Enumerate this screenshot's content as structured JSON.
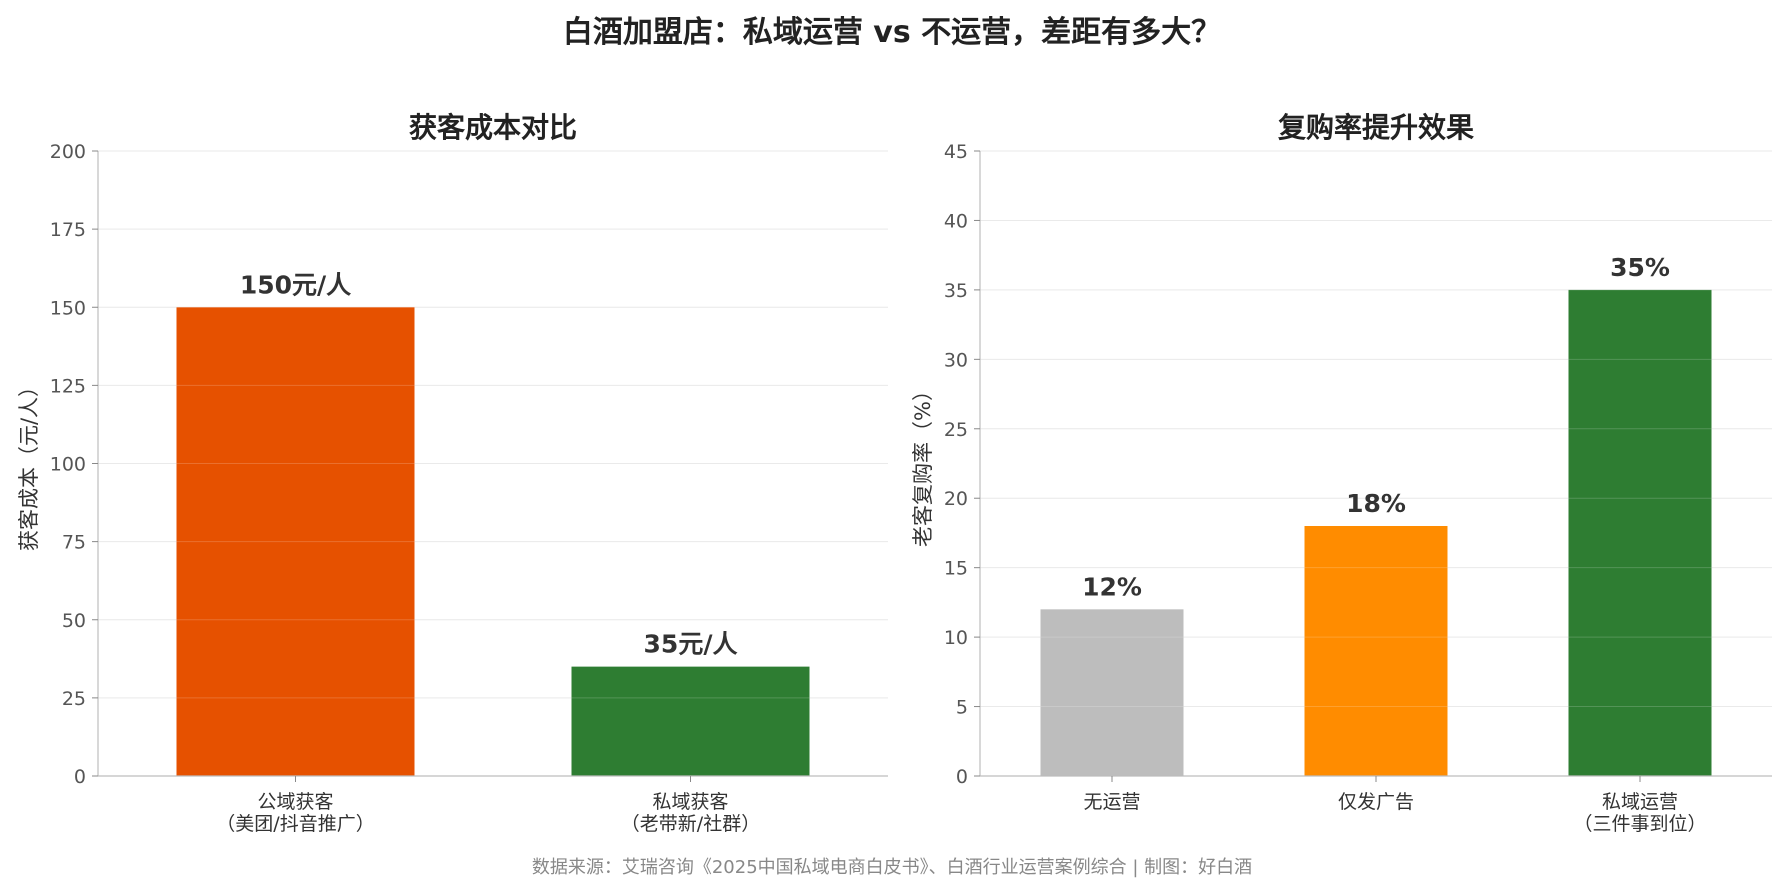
{
  "suptitle": "白酒加盟店：私域运营 vs 不运营，差距有多大？",
  "source": "数据来源：艾瑞咨询《2025中国私域电商白皮书》、白酒行业运营案例综合 | 制图：好白酒",
  "chart_data": [
    {
      "type": "bar",
      "title": "获客成本对比",
      "xlabel": "",
      "ylabel": "获客成本（元/人）",
      "ylim": [
        0,
        200
      ],
      "yticks": [
        0,
        25,
        50,
        75,
        100,
        125,
        150,
        175,
        200
      ],
      "grid": true,
      "categories": [
        [
          "公域获客",
          "（美团/抖音推广）"
        ],
        [
          "私域获客",
          "（老带新/社群）"
        ]
      ],
      "values": [
        150,
        35
      ],
      "data_labels": [
        "150元/人",
        "35元/人"
      ],
      "colors": [
        "#e65100",
        "#2e7d32"
      ]
    },
    {
      "type": "bar",
      "title": "复购率提升效果",
      "xlabel": "",
      "ylabel": "老客复购率（%）",
      "ylim": [
        0,
        45
      ],
      "yticks": [
        0,
        5,
        10,
        15,
        20,
        25,
        30,
        35,
        40,
        45
      ],
      "grid": true,
      "categories": [
        [
          "无运营"
        ],
        [
          "仅发广告"
        ],
        [
          "私域运营",
          "（三件事到位）"
        ]
      ],
      "values": [
        12,
        18,
        35
      ],
      "data_labels": [
        "12%",
        "18%",
        "35%"
      ],
      "colors": [
        "#bdbdbd",
        "#ff8c00",
        "#2e7d32"
      ]
    }
  ]
}
